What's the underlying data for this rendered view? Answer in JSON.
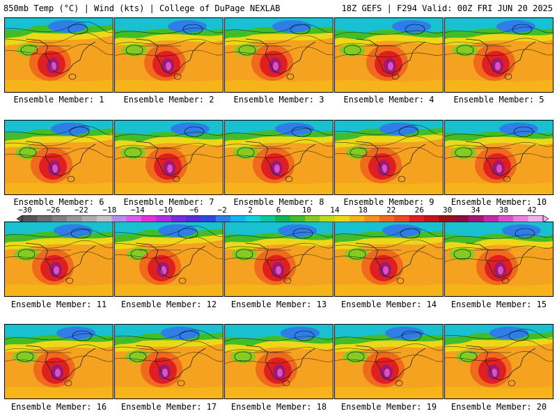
{
  "header": {
    "left_title": "850mb Temp (°C) | Wind (kts) | College of DuPage NEXLAB",
    "right_title": "18Z GEFS | F294 Valid: 00Z FRI JUN 20 2025"
  },
  "members": [
    {
      "label": "Ensemble Member: 1"
    },
    {
      "label": "Ensemble Member: 2"
    },
    {
      "label": "Ensemble Member: 3"
    },
    {
      "label": "Ensemble Member: 4"
    },
    {
      "label": "Ensemble Member: 5"
    },
    {
      "label": "Ensemble Member: 6"
    },
    {
      "label": "Ensemble Member: 7"
    },
    {
      "label": "Ensemble Member: 8"
    },
    {
      "label": "Ensemble Member: 9"
    },
    {
      "label": "Ensemble Member: 10"
    },
    {
      "label": "Ensemble Member: 11"
    },
    {
      "label": "Ensemble Member: 12"
    },
    {
      "label": "Ensemble Member: 13"
    },
    {
      "label": "Ensemble Member: 14"
    },
    {
      "label": "Ensemble Member: 15"
    },
    {
      "label": "Ensemble Member: 16"
    },
    {
      "label": "Ensemble Member: 17"
    },
    {
      "label": "Ensemble Member: 18"
    },
    {
      "label": "Ensemble Member: 19"
    },
    {
      "label": "Ensemble Member: 20"
    }
  ],
  "colorbar": {
    "labels": [
      "−30",
      "−26",
      "−22",
      "−18",
      "−14",
      "−10",
      "−6",
      "−2",
      "2",
      "6",
      "10",
      "14",
      "18",
      "22",
      "26",
      "30",
      "34",
      "38",
      "42"
    ],
    "colors": [
      "#555555",
      "#6b6b6b",
      "#808080",
      "#969696",
      "#acacac",
      "#c4c4c4",
      "#b58ee6",
      "#d45fe8",
      "#e033d8",
      "#b030e0",
      "#7a2ad8",
      "#5530d8",
      "#2f48e0",
      "#2f7ee8",
      "#18b0ee",
      "#18d0dc",
      "#12c49a",
      "#18b050",
      "#42bc28",
      "#84cc22",
      "#c0d820",
      "#ecd818",
      "#f6b41a",
      "#f4901c",
      "#f06a1e",
      "#ec4a20",
      "#e02020",
      "#c01818",
      "#a01010",
      "#8a1238",
      "#a01872",
      "#c02ca8",
      "#d852c8",
      "#e880dc",
      "#f0b0ec"
    ]
  }
}
